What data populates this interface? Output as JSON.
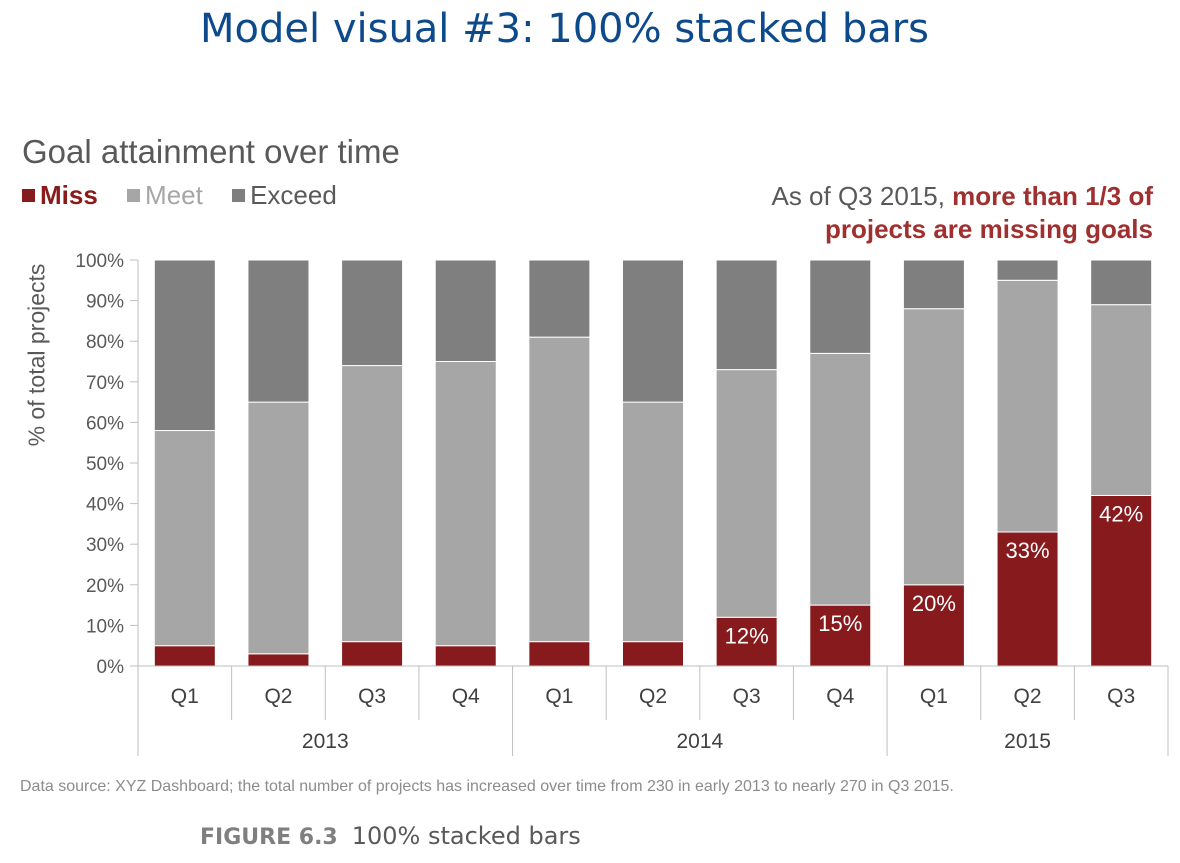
{
  "page_title": "Model visual #3: 100% stacked bars",
  "legend": {
    "miss": "Miss",
    "meet": "Meet",
    "exceed": "Exceed"
  },
  "annotation": {
    "prefix": "As of Q3 2015,",
    "highlight": "more than 1/3 of projects are missing goals"
  },
  "footer": {
    "source": "Data source: XYZ Dashboard; the total number of projects has increased over time from 230 in early 2013 to nearly 270 in Q3 2015.",
    "figure_number": "FIGURE 6.3",
    "figure_caption": "100% stacked bars"
  },
  "colors": {
    "miss": "#861a1c",
    "meet": "#a6a6a6",
    "exceed": "#7f7f7f",
    "title": "#0d4a8c"
  },
  "chart_data": {
    "type": "bar",
    "stacked": "100%",
    "title": "Goal attainment over time",
    "ylabel": "% of total projects",
    "xlabel": "",
    "ylim": [
      0,
      100
    ],
    "yticks": [
      "0%",
      "10%",
      "20%",
      "30%",
      "40%",
      "50%",
      "60%",
      "70%",
      "80%",
      "90%",
      "100%"
    ],
    "grid": false,
    "legend_position": "top-left",
    "categories": [
      "Q1",
      "Q2",
      "Q3",
      "Q4",
      "Q1",
      "Q2",
      "Q3",
      "Q4",
      "Q1",
      "Q2",
      "Q3"
    ],
    "groups": [
      {
        "label": "2013",
        "count": 4
      },
      {
        "label": "2014",
        "count": 4
      },
      {
        "label": "2015",
        "count": 3
      }
    ],
    "series": [
      {
        "name": "Miss",
        "values": [
          5,
          3,
          6,
          5,
          6,
          6,
          12,
          15,
          20,
          33,
          42
        ]
      },
      {
        "name": "Meet",
        "values": [
          53,
          62,
          68,
          70,
          75,
          59,
          61,
          62,
          68,
          62,
          47
        ]
      },
      {
        "name": "Exceed",
        "values": [
          42,
          35,
          26,
          25,
          19,
          35,
          27,
          23,
          12,
          5,
          11
        ]
      }
    ],
    "data_labels": [
      "",
      "",
      "",
      "",
      "",
      "",
      "12%",
      "15%",
      "20%",
      "33%",
      "42%"
    ]
  }
}
